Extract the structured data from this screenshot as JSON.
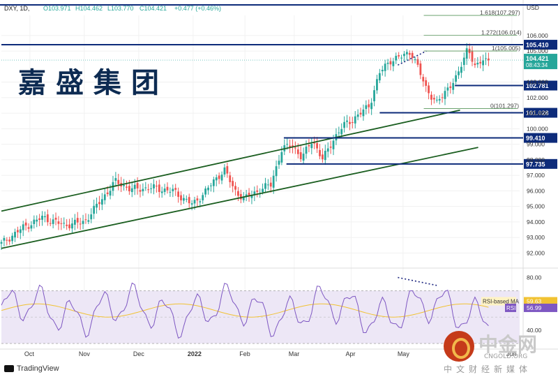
{
  "chart_data": {
    "type": "candlestick",
    "symbol_header": {
      "symbol": "DXY, 1D,",
      "open": "O103.971",
      "high": "H104.462",
      "low": "L103.770",
      "close": "C104.421",
      "change": "+0.477 (+0.46%)"
    },
    "price_axis": {
      "unit": "USD",
      "ticks": [
        92.0,
        93.0,
        94.0,
        95.0,
        96.0,
        97.0,
        98.0,
        99.0,
        100.0,
        101.0,
        102.0,
        103.0,
        105.0,
        106.0
      ],
      "tick_labels": [
        "92.000",
        "93.000",
        "94.000",
        "95.000",
        "96.000",
        "97.000",
        "98.000",
        "99.000",
        "100.000",
        "101.000",
        "102.000",
        "103.000",
        "105.000",
        "106.000"
      ],
      "ylim": [
        91.3,
        107.3
      ]
    },
    "time_axis": {
      "labels": [
        "Oct",
        "Nov",
        "Dec",
        "2022",
        "Feb",
        "Mar",
        "Apr",
        "May",
        "Jun"
      ]
    },
    "horizontal_levels": [
      {
        "label": "105.410",
        "value": 105.41
      },
      {
        "label": "102.781",
        "value": 102.781
      },
      {
        "label": "101.028",
        "value": 101.028
      },
      {
        "label": "99.410",
        "value": 99.41
      },
      {
        "label": "97.735",
        "value": 97.735
      }
    ],
    "last_price": {
      "label": "104.421",
      "countdown": "08:43:34",
      "value": 104.421
    },
    "fib_labels": [
      {
        "text": "1.618(107.297)",
        "value": 107.297
      },
      {
        "text": "1.272(106.014)",
        "value": 106.014
      },
      {
        "text": "1(105.005)",
        "value": 105.005
      },
      {
        "text": "0(101.297)",
        "value": 101.297
      }
    ],
    "channel_lines": [
      {
        "name": "upper",
        "from": [
          0,
          94.7
        ],
        "to": [
          0.885,
          101.2
        ]
      },
      {
        "name": "lower",
        "from": [
          0,
          92.3
        ],
        "to": [
          0.92,
          98.8
        ]
      }
    ],
    "price_anchors": [
      [
        0.0,
        92.6
      ],
      [
        0.04,
        93.6
      ],
      [
        0.08,
        94.3
      ],
      [
        0.12,
        93.8
      ],
      [
        0.16,
        94.0
      ],
      [
        0.19,
        95.3
      ],
      [
        0.22,
        96.6
      ],
      [
        0.25,
        96.1
      ],
      [
        0.29,
        96.2
      ],
      [
        0.33,
        96.0
      ],
      [
        0.37,
        95.1
      ],
      [
        0.41,
        96.6
      ],
      [
        0.43,
        97.4
      ],
      [
        0.45,
        96.0
      ],
      [
        0.47,
        95.5
      ],
      [
        0.5,
        96.1
      ],
      [
        0.52,
        96.4
      ],
      [
        0.54,
        98.6
      ],
      [
        0.56,
        99.0
      ],
      [
        0.58,
        98.1
      ],
      [
        0.6,
        99.3
      ],
      [
        0.62,
        98.0
      ],
      [
        0.64,
        99.3
      ],
      [
        0.66,
        100.2
      ],
      [
        0.69,
        100.9
      ],
      [
        0.71,
        101.5
      ],
      [
        0.73,
        103.6
      ],
      [
        0.75,
        104.4
      ],
      [
        0.77,
        104.6
      ],
      [
        0.79,
        105.0
      ],
      [
        0.82,
        102.6
      ],
      [
        0.84,
        101.6
      ],
      [
        0.86,
        102.6
      ],
      [
        0.88,
        103.3
      ],
      [
        0.89,
        104.4
      ],
      [
        0.9,
        105.3
      ],
      [
        0.915,
        103.8
      ],
      [
        0.93,
        104.6
      ],
      [
        0.94,
        104.4
      ]
    ],
    "rsi": {
      "ticks": [
        40.0,
        80.0
      ],
      "tick_labels": [
        "40.00",
        "80.00"
      ],
      "ylim": [
        30,
        85
      ],
      "band_top": 70,
      "band_bottom": 30,
      "rsi_label": "RSI",
      "rsi_value": "56.99",
      "ma_label": "RSI-based MA",
      "ma_value": "59.63",
      "colors": {
        "rsi": "#7e57c2",
        "ma": "#f1c232",
        "band": "#ede7f6"
      }
    },
    "colors": {
      "up": "#26a69a",
      "down": "#ef5350",
      "level": "#0d2b7a",
      "channel": "#1b5e20"
    }
  },
  "watermark": {
    "cn": "嘉盛集团"
  },
  "brand": {
    "name": "中金网",
    "url": "CNGOLD.ORG",
    "slogan": "中文财经新媒体"
  },
  "footer": {
    "logo_text": "TradingView"
  }
}
